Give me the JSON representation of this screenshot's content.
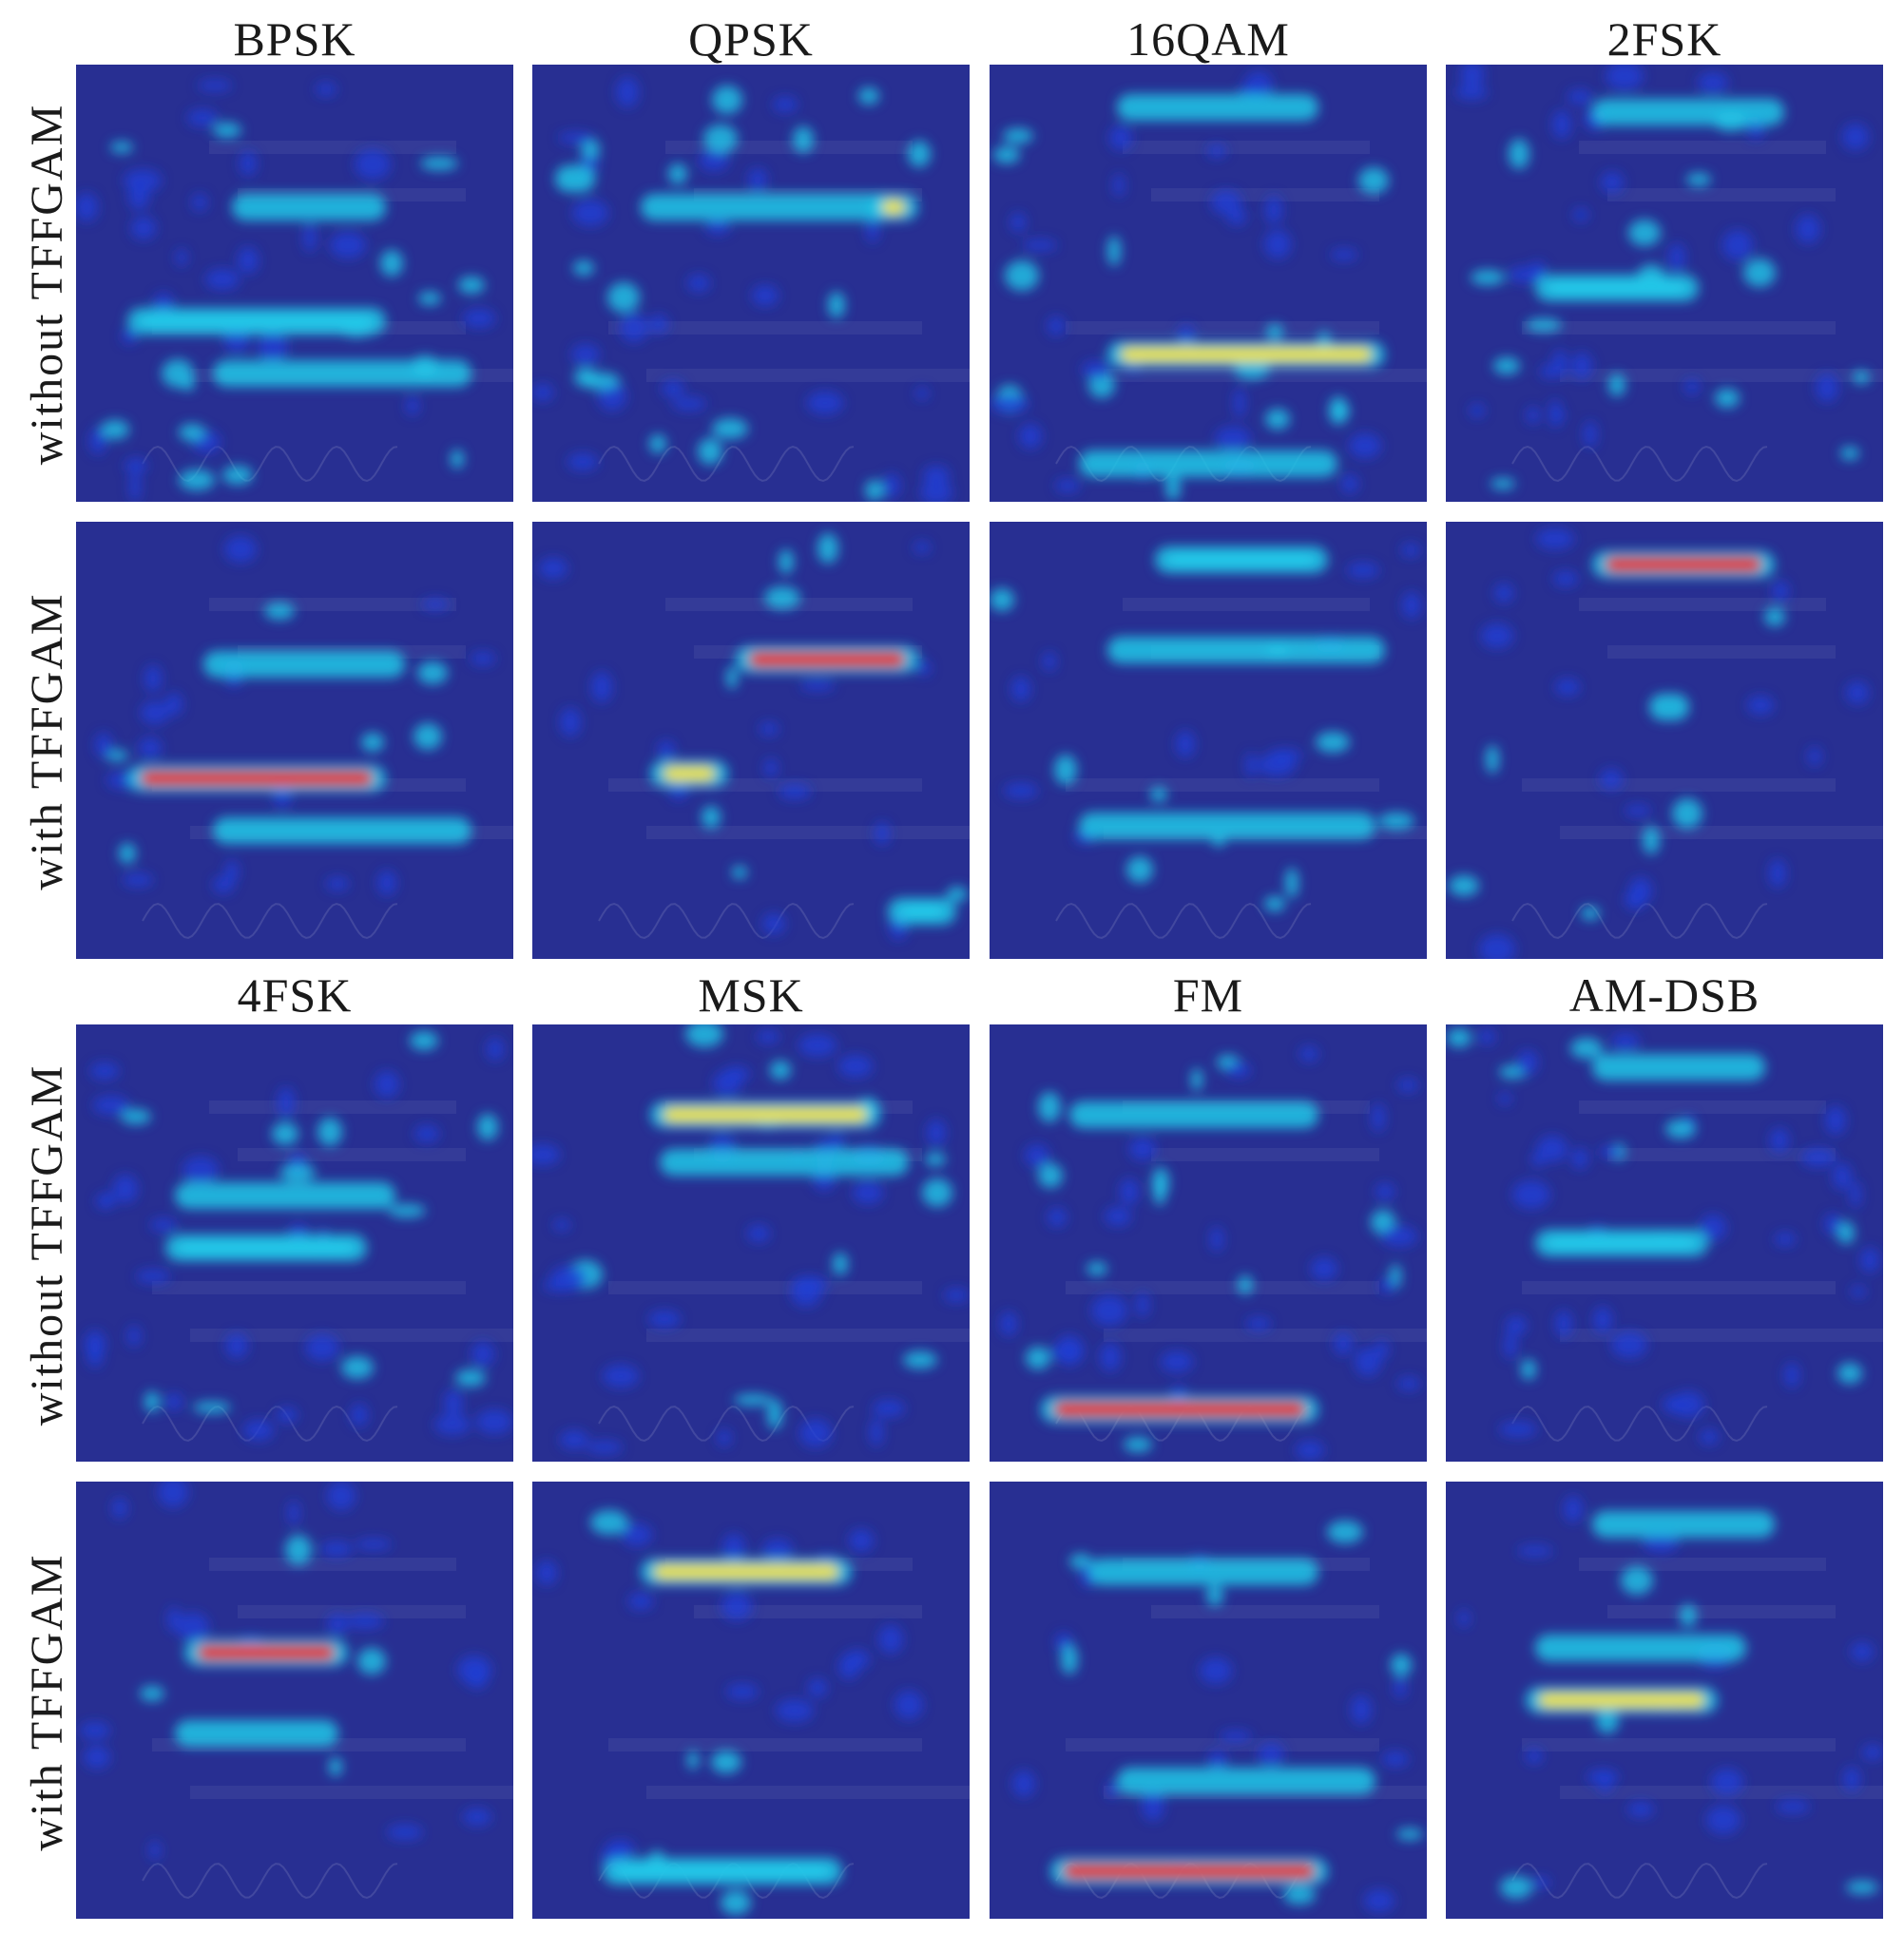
{
  "figure": {
    "column_titles": [
      "BPSK",
      "QPSK",
      "16QAM",
      "2FSK",
      "4FSK",
      "MSK",
      "FM",
      "AM-DSB"
    ],
    "row_labels": [
      "without TFFGAM",
      "with TFFGAM",
      "without TFFGAM",
      "with TFFGAM"
    ],
    "colormap": {
      "background": "#282f92",
      "low": "#1f3fd6",
      "mid": "#22c8e8",
      "high": "#e8e040",
      "peak": "#e0261b"
    }
  }
}
